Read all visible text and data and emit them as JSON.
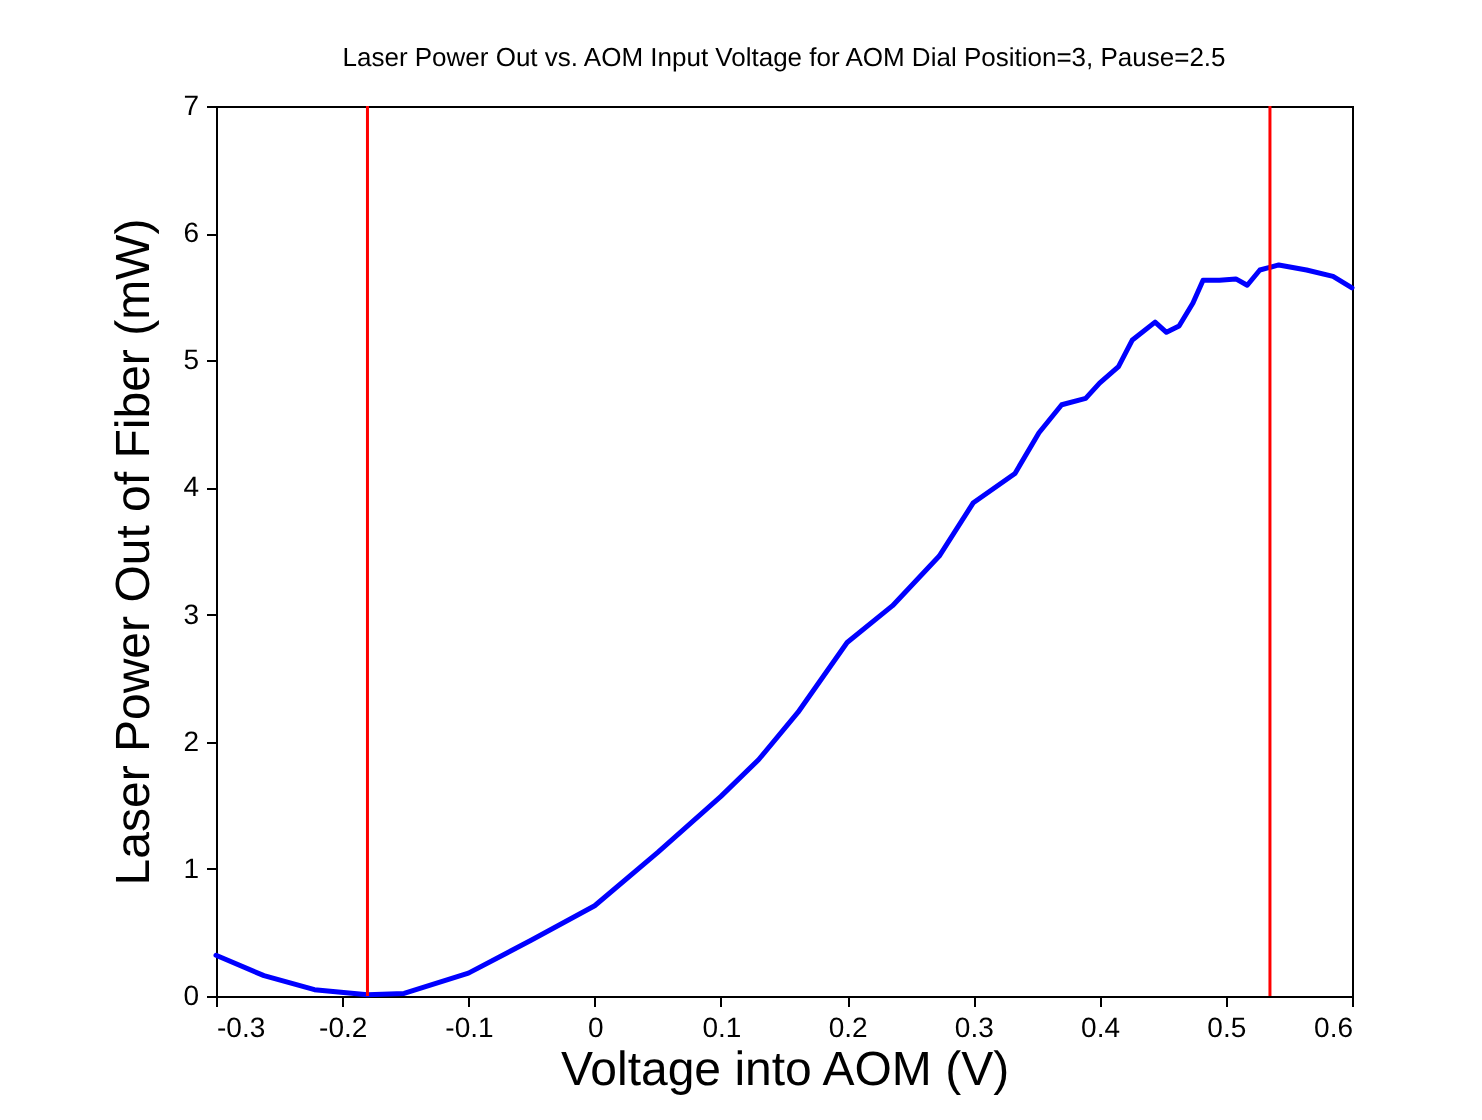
{
  "chart_data": {
    "type": "line",
    "title": "Laser Power Out vs. AOM Input Voltage for AOM Dial Position=3, Pause=2.5",
    "xlabel": "Voltage into AOM (V)",
    "ylabel": "Laser Power Out of Fiber (mW)",
    "x": [
      -0.3,
      -0.262,
      -0.222,
      -0.18,
      -0.151,
      -0.1,
      -0.05,
      0,
      0.05,
      0.1,
      0.13,
      0.161,
      0.2,
      0.236,
      0.273,
      0.3,
      0.333,
      0.352,
      0.37,
      0.389,
      0.4,
      0.415,
      0.426,
      0.444,
      0.453,
      0.463,
      0.474,
      0.482,
      0.495,
      0.508,
      0.517,
      0.527,
      0.542,
      0.564,
      0.585,
      0.6
    ],
    "series": [
      {
        "color": "#0000ff",
        "values": [
          0.32,
          0.16,
          0.05,
          0.01,
          0.02,
          0.18,
          0.44,
          0.71,
          1.13,
          1.57,
          1.86,
          2.23,
          2.78,
          3.07,
          3.46,
          3.88,
          4.11,
          4.43,
          4.65,
          4.7,
          4.82,
          4.95,
          5.16,
          5.3,
          5.22,
          5.27,
          5.45,
          5.63,
          5.63,
          5.64,
          5.59,
          5.71,
          5.75,
          5.71,
          5.66,
          5.57
        ]
      }
    ],
    "xlim": [
      -0.3,
      0.6
    ],
    "xticks": [
      -0.3,
      -0.2,
      -0.1,
      0,
      0.1,
      0.2,
      0.3,
      0.4,
      0.5,
      0.6
    ],
    "ylim": [
      0,
      7
    ],
    "yticks": [
      0,
      1,
      2,
      3,
      4,
      5,
      6,
      7
    ],
    "ref_lines": [
      {
        "axis": "x",
        "value": -0.18,
        "color": "#ff0000"
      },
      {
        "axis": "x",
        "value": 0.535,
        "color": "#ff0000"
      }
    ],
    "grid": false,
    "marker": "none",
    "line_style": "solid"
  }
}
